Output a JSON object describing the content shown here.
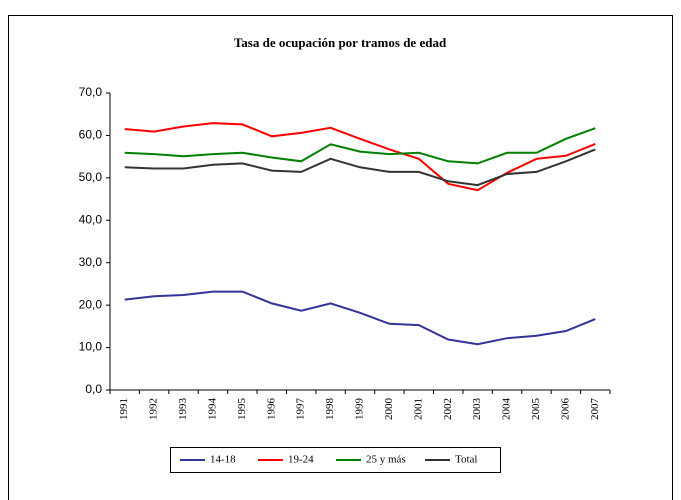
{
  "chart_data": {
    "type": "line",
    "title": "Tasa de ocupación por tramos de edad",
    "categories": [
      "1991",
      "1992",
      "1993",
      "1994",
      "1995",
      "1996",
      "1997",
      "1998",
      "1999",
      "2000",
      "2001",
      "2002",
      "2003",
      "2004",
      "2005",
      "2006",
      "2007"
    ],
    "series": [
      {
        "name": "14-18",
        "color": "#333399",
        "values": [
          21.3,
          22.1,
          22.4,
          23.2,
          23.2,
          20.4,
          18.7,
          20.4,
          18.2,
          15.6,
          15.3,
          11.9,
          10.8,
          12.2,
          12.8,
          13.9,
          16.7
        ]
      },
      {
        "name": "19-24",
        "color": "#ff0000",
        "values": [
          61.5,
          60.9,
          62.1,
          62.9,
          62.6,
          59.8,
          60.6,
          61.8,
          59.2,
          56.7,
          54.5,
          48.6,
          47.1,
          51.2,
          54.5,
          55.2,
          58.0
        ]
      },
      {
        "name": "25 y más",
        "color": "#008000",
        "values": [
          55.9,
          55.6,
          55.1,
          55.6,
          55.9,
          54.8,
          53.9,
          57.9,
          56.2,
          55.6,
          55.9,
          53.9,
          53.4,
          55.9,
          55.9,
          59.2,
          61.7
        ]
      },
      {
        "name": "Total",
        "color": "#333333",
        "values": [
          52.5,
          52.2,
          52.2,
          53.1,
          53.4,
          51.7,
          51.4,
          54.5,
          52.5,
          51.4,
          51.4,
          49.2,
          48.3,
          50.9,
          51.4,
          53.9,
          56.7
        ]
      }
    ],
    "ylim": [
      0,
      70
    ],
    "yticks": [
      {
        "value": 0,
        "label": "0,0"
      },
      {
        "value": 10,
        "label": "10,0"
      },
      {
        "value": 20,
        "label": "20,0"
      },
      {
        "value": 30,
        "label": "30,0"
      },
      {
        "value": 40,
        "label": "40,0"
      },
      {
        "value": 50,
        "label": "50,0"
      },
      {
        "value": 60,
        "label": "60,0"
      },
      {
        "value": 70,
        "label": "70,0"
      }
    ]
  }
}
